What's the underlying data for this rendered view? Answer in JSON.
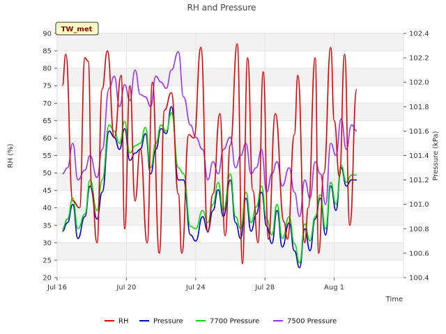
{
  "chart_data": {
    "type": "line",
    "title": "RH and Pressure",
    "station_label": "TW_met",
    "xlabel": "Time",
    "ylabel_left": "RH (%)",
    "ylabel_right": "Pressure (kPa)",
    "xlim": [
      0,
      20
    ],
    "ylim_left": [
      20,
      90
    ],
    "ylim_right": [
      100.4,
      102.4
    ],
    "x_ticks": [
      {
        "value": 0,
        "label": "Jul 16"
      },
      {
        "value": 4,
        "label": "Jul 20"
      },
      {
        "value": 8,
        "label": "Jul 24"
      },
      {
        "value": 12,
        "label": "Jul 28"
      },
      {
        "value": 16,
        "label": "Aug 1"
      }
    ],
    "y_ticks_left": [
      20,
      25,
      30,
      35,
      40,
      45,
      50,
      55,
      60,
      65,
      70,
      75,
      80,
      85,
      90
    ],
    "y_ticks_right": [
      "100.4",
      "100.6",
      "100.8",
      "101.0",
      "101.2",
      "101.4",
      "101.6",
      "101.8",
      "102.0",
      "102.2",
      "102.4"
    ],
    "grid": true,
    "legend_position": "bottom",
    "series": [
      {
        "name": "RH",
        "axis": "left",
        "color": "#e00000",
        "x": [
          0.3,
          0.5,
          0.9,
          1.3,
          1.6,
          1.8,
          2.0,
          2.3,
          2.6,
          2.9,
          3.3,
          3.7,
          3.9,
          4.2,
          4.5,
          4.8,
          5.2,
          5.5,
          5.9,
          6.2,
          6.6,
          7.0,
          7.2,
          7.6,
          7.9,
          8.3,
          8.7,
          9.0,
          9.4,
          9.7,
          10.0,
          10.4,
          10.7,
          11.0,
          11.3,
          11.6,
          11.9,
          12.2,
          12.6,
          13.1,
          13.3,
          13.7,
          13.9,
          14.3,
          14.5,
          14.9,
          15.1,
          15.4,
          15.8,
          16.0,
          16.3,
          16.6,
          16.9,
          17.3
        ],
        "y": [
          75,
          84,
          42,
          40,
          83,
          82,
          45,
          30,
          74,
          85,
          60,
          78,
          34,
          75,
          42,
          57,
          30,
          76,
          27,
          68,
          73,
          44,
          27,
          61,
          60,
          86,
          33,
          44,
          67,
          32,
          58,
          87,
          24,
          83,
          45,
          30,
          79,
          31,
          67,
          36,
          31,
          61,
          78,
          30,
          40,
          83,
          27,
          50,
          86,
          65,
          49,
          84,
          35,
          74
        ]
      },
      {
        "name": "Pressure",
        "axis": "right",
        "color": "#0000d0",
        "x": [
          0.3,
          0.6,
          0.9,
          1.2,
          1.6,
          1.9,
          2.3,
          2.6,
          3.0,
          3.3,
          3.6,
          3.9,
          4.2,
          4.5,
          4.8,
          5.1,
          5.4,
          5.7,
          6.0,
          6.3,
          6.6,
          7.0,
          7.3,
          7.7,
          8.0,
          8.4,
          8.7,
          9.0,
          9.3,
          9.6,
          10.0,
          10.3,
          10.6,
          10.9,
          11.2,
          11.5,
          11.8,
          12.1,
          12.4,
          12.7,
          13.0,
          13.4,
          13.7,
          14.0,
          14.3,
          14.6,
          14.9,
          15.2,
          15.5,
          15.8,
          16.1,
          16.4,
          16.7,
          17.0,
          17.3
        ],
        "y": [
          100.78,
          100.85,
          101.0,
          100.72,
          100.9,
          101.15,
          100.88,
          101.1,
          101.6,
          101.55,
          101.45,
          101.62,
          101.36,
          101.42,
          101.45,
          101.58,
          101.25,
          101.45,
          101.62,
          101.58,
          101.8,
          101.2,
          101.2,
          100.75,
          100.7,
          100.9,
          100.78,
          100.95,
          101.12,
          100.9,
          101.2,
          100.85,
          100.72,
          101.05,
          100.78,
          100.92,
          101.1,
          100.82,
          100.68,
          100.95,
          100.65,
          100.85,
          100.62,
          100.48,
          100.8,
          100.62,
          100.88,
          101.05,
          100.75,
          101.15,
          100.95,
          101.3,
          101.15,
          101.2,
          101.2
        ]
      },
      {
        "name": "7700 Pressure",
        "axis": "right",
        "color": "#00e000",
        "x": [
          0.3,
          0.6,
          0.9,
          1.2,
          1.6,
          1.9,
          2.3,
          2.6,
          3.0,
          3.3,
          3.6,
          3.9,
          4.2,
          4.5,
          4.8,
          5.1,
          5.4,
          5.7,
          6.0,
          6.3,
          6.6,
          7.0,
          7.3,
          7.7,
          8.0,
          8.4,
          8.7,
          9.0,
          9.3,
          9.6,
          10.0,
          10.3,
          10.6,
          10.9,
          11.2,
          11.5,
          11.8,
          12.1,
          12.4,
          12.7,
          13.0,
          13.4,
          13.7,
          14.0,
          14.3,
          14.6,
          14.9,
          15.2,
          15.5,
          15.8,
          16.1,
          16.4,
          16.7,
          17.0,
          17.3
        ],
        "y": [
          100.8,
          100.88,
          101.05,
          100.8,
          100.92,
          101.2,
          100.95,
          101.2,
          101.65,
          101.6,
          101.5,
          101.68,
          101.42,
          101.48,
          101.5,
          101.63,
          101.3,
          101.5,
          101.65,
          101.6,
          101.75,
          101.3,
          101.25,
          100.82,
          100.8,
          100.95,
          100.85,
          101.0,
          101.18,
          100.95,
          101.25,
          100.9,
          100.8,
          101.1,
          100.85,
          100.98,
          101.15,
          100.88,
          100.75,
          101.0,
          100.72,
          100.9,
          100.68,
          100.52,
          100.84,
          100.7,
          100.9,
          101.08,
          100.8,
          101.18,
          101.0,
          101.32,
          101.18,
          101.24,
          101.24
        ]
      },
      {
        "name": "7500 Pressure",
        "axis": "right",
        "color": "#9b30ff",
        "x": [
          0.3,
          0.6,
          0.9,
          1.2,
          1.6,
          1.9,
          2.3,
          2.6,
          3.0,
          3.3,
          3.6,
          3.9,
          4.2,
          4.5,
          4.8,
          5.1,
          5.4,
          5.7,
          6.0,
          6.3,
          6.6,
          7.0,
          7.3,
          7.7,
          8.0,
          8.4,
          8.7,
          9.0,
          9.3,
          9.6,
          10.0,
          10.3,
          10.6,
          10.9,
          11.2,
          11.5,
          11.8,
          12.1,
          12.4,
          12.7,
          13.0,
          13.4,
          13.7,
          14.0,
          14.3,
          14.6,
          14.9,
          15.2,
          15.5,
          15.8,
          16.1,
          16.4,
          16.7,
          17.0,
          17.3
        ],
        "y": [
          101.25,
          101.3,
          101.5,
          101.2,
          101.28,
          101.4,
          101.22,
          101.45,
          101.95,
          102.05,
          101.8,
          101.98,
          101.85,
          102.1,
          101.9,
          101.88,
          101.8,
          102.05,
          102.0,
          101.95,
          102.1,
          102.25,
          101.88,
          101.65,
          101.55,
          101.45,
          101.2,
          101.35,
          101.25,
          101.45,
          101.55,
          101.3,
          101.4,
          101.5,
          101.25,
          101.3,
          101.45,
          101.1,
          101.25,
          101.35,
          101.15,
          101.3,
          101.1,
          100.9,
          101.2,
          101.05,
          101.35,
          101.25,
          101.0,
          101.5,
          101.4,
          101.7,
          101.45,
          101.65,
          101.6
        ]
      }
    ]
  }
}
